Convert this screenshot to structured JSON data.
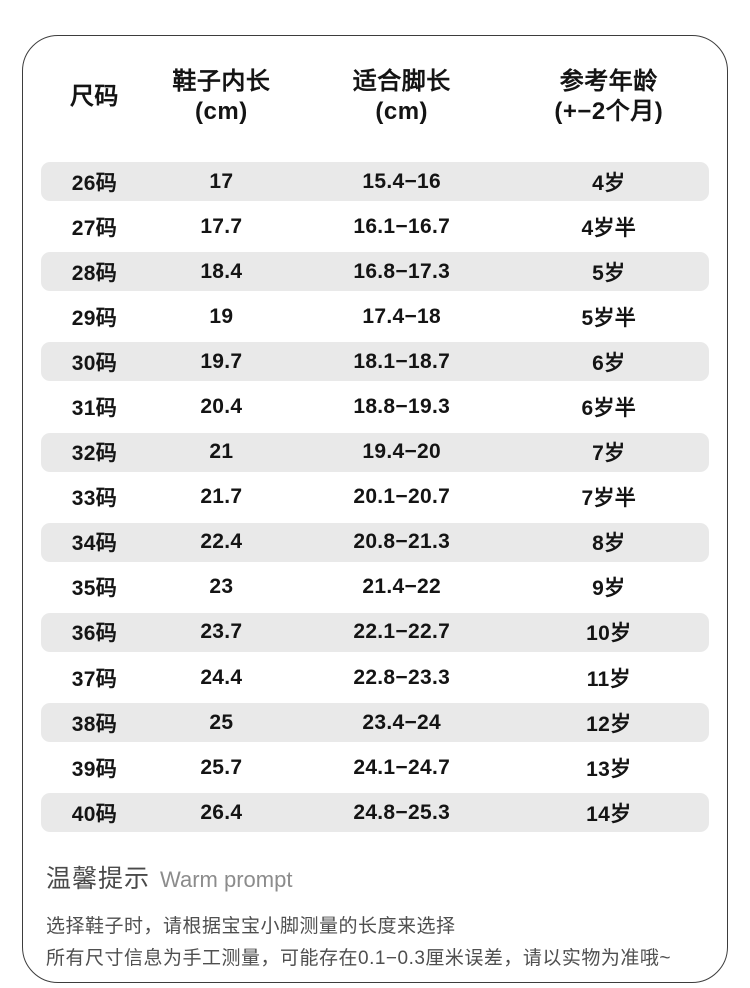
{
  "table": {
    "headers": [
      {
        "line1": "尺码",
        "line2": ""
      },
      {
        "line1": "鞋子内长",
        "line2": "(cm)"
      },
      {
        "line1": "适合脚长",
        "line2": "(cm)"
      },
      {
        "line1": "参考年龄",
        "line2": "(+−2个月)"
      }
    ],
    "rows": [
      [
        "26码",
        "17",
        "15.4−16",
        "4岁"
      ],
      [
        "27码",
        "17.7",
        "16.1−16.7",
        "4岁半"
      ],
      [
        "28码",
        "18.4",
        "16.8−17.3",
        "5岁"
      ],
      [
        "29码",
        "19",
        "17.4−18",
        "5岁半"
      ],
      [
        "30码",
        "19.7",
        "18.1−18.7",
        "6岁"
      ],
      [
        "31码",
        "20.4",
        "18.8−19.3",
        "6岁半"
      ],
      [
        "32码",
        "21",
        "19.4−20",
        "7岁"
      ],
      [
        "33码",
        "21.7",
        "20.1−20.7",
        "7岁半"
      ],
      [
        "34码",
        "22.4",
        "20.8−21.3",
        "8岁"
      ],
      [
        "35码",
        "23",
        "21.4−22",
        "9岁"
      ],
      [
        "36码",
        "23.7",
        "22.1−22.7",
        "10岁"
      ],
      [
        "37码",
        "24.4",
        "22.8−23.3",
        "11岁"
      ],
      [
        "38码",
        "25",
        "23.4−24",
        "12岁"
      ],
      [
        "39码",
        "25.7",
        "24.1−24.7",
        "13岁"
      ],
      [
        "40码",
        "26.4",
        "24.8−25.3",
        "14岁"
      ]
    ]
  },
  "footer": {
    "tip_title_zh": "温馨提示",
    "tip_title_en": "Warm prompt",
    "line1": "选择鞋子时，请根据宝宝小脚测量的长度来选择",
    "line2": "所有尺寸信息为手工测量，可能存在0.1−0.3厘米误差，请以实物为准哦~"
  },
  "colors": {
    "row_stripe": "#e9e9e9",
    "text_primary": "#141414",
    "text_secondary": "#4f4f4f",
    "card_border": "#3d3d3d"
  }
}
